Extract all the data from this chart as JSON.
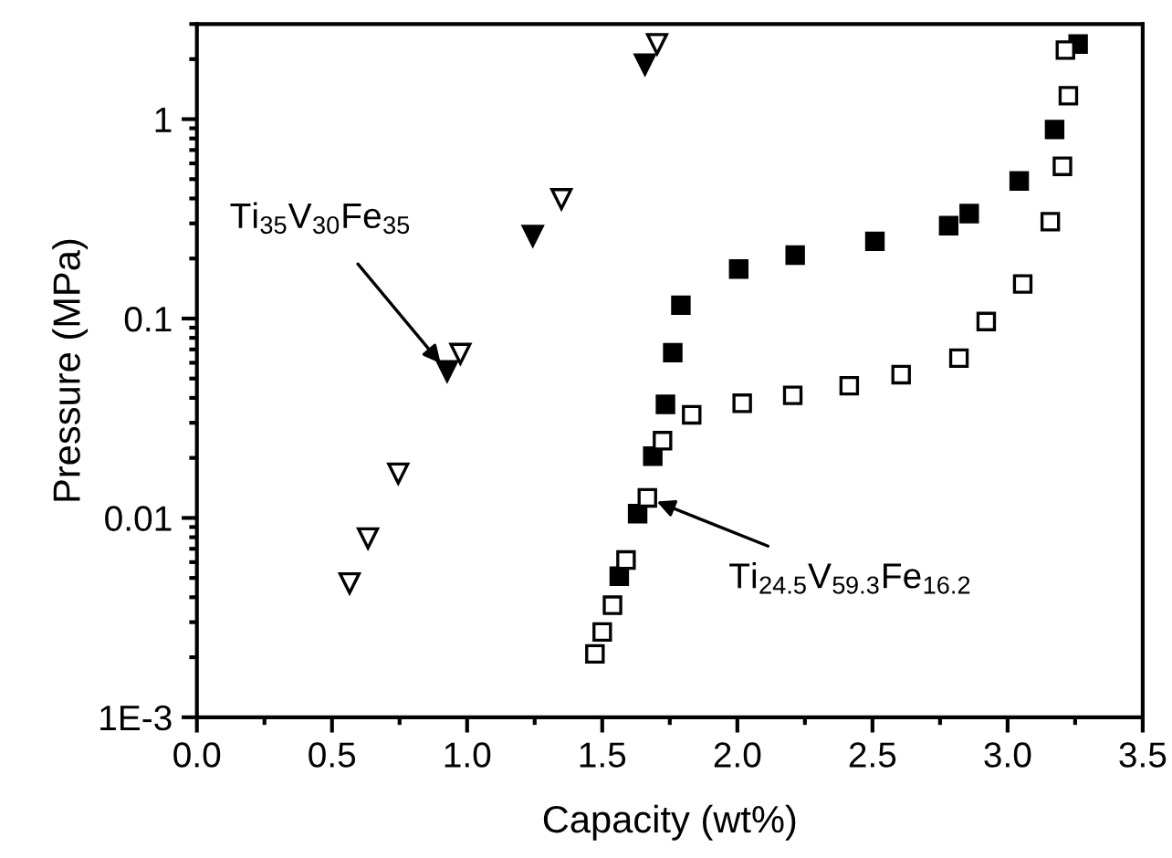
{
  "chart_data": {
    "type": "scatter",
    "xlabel": "Capacity (wt%)",
    "ylabel": "Pressure (MPa)",
    "log": "y",
    "xlim": [
      0.0,
      3.5
    ],
    "xticks": [
      {
        "value": 0,
        "label": "0.0"
      },
      0.5,
      {
        "value": 1,
        "label": "1.0"
      },
      1.5,
      {
        "value": 2,
        "label": "2.0"
      },
      2.5,
      {
        "value": 3,
        "label": "3.0"
      },
      3.5
    ],
    "ylim": [
      0.001,
      3
    ],
    "yticks": [
      {
        "value": 0.001,
        "label": "1E-3"
      },
      0.01,
      0.1,
      1
    ],
    "grid": false,
    "series": [
      {
        "color": "#ffffff",
        "marker": "triangle",
        "x": [
          0.565,
          0.633,
          0.745,
          0.975,
          1.349,
          1.703
        ],
        "values": [
          0.0047,
          0.0079,
          0.0167,
          0.0665,
          0.397,
          2.38
        ]
      },
      {
        "color": "#000000",
        "marker": "triangle",
        "x": [
          0.926,
          1.243,
          1.658
        ],
        "values": [
          0.0545,
          0.26,
          1.88
        ]
      },
      {
        "color": "#000000",
        "marker": "square",
        "x": [
          1.563,
          1.631,
          1.687,
          1.734,
          1.761,
          1.791,
          2.005,
          2.214,
          2.509,
          2.782,
          2.858,
          3.043,
          3.174,
          3.261
        ],
        "values": [
          0.0051,
          0.0105,
          0.0204,
          0.0371,
          0.0674,
          0.1167,
          0.177,
          0.208,
          0.244,
          0.292,
          0.336,
          0.49,
          0.887,
          2.38
        ]
      },
      {
        "color": "#ffffff",
        "marker": "square",
        "x": [
          1.473,
          1.5,
          1.538,
          1.588,
          1.667,
          1.723,
          1.831,
          2.018,
          2.205,
          2.414,
          2.606,
          2.82,
          2.921,
          3.056,
          3.158,
          3.203,
          3.225,
          3.214
        ],
        "values": [
          0.00208,
          0.00268,
          0.00365,
          0.00615,
          0.0126,
          0.0244,
          0.0329,
          0.0376,
          0.0412,
          0.046,
          0.0523,
          0.0633,
          0.0966,
          0.149,
          0.306,
          0.58,
          1.31,
          2.22
        ]
      }
    ],
    "annotations": [
      {
        "text": "Ti$_{35}$V$_{30}$Fe$_{35}$",
        "x": 0.926,
        "y": 0.0545
      },
      {
        "text": "Ti$_{24.5}$V$_{59.3}$Fe$_{16.2}$",
        "x": 1.667,
        "y": 0.0126
      }
    ]
  }
}
